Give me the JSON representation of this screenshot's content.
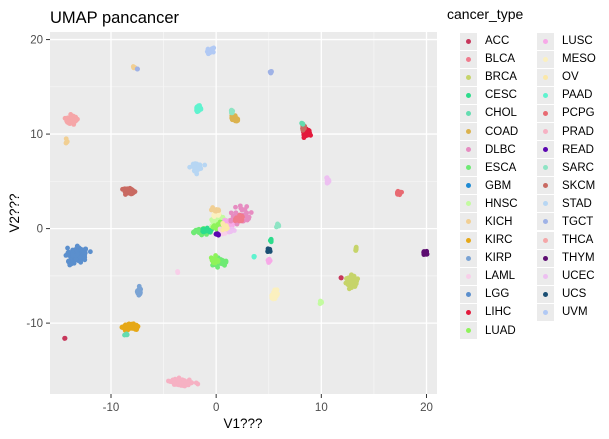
{
  "chart_data": {
    "type": "scatter",
    "title": "UMAP pancancer",
    "xlabel": "V1???",
    "ylabel": "V2???",
    "xlim": [
      -15.8,
      21.0
    ],
    "ylim": [
      -17.5,
      20.8
    ],
    "xticks": [
      -10,
      0,
      10,
      20
    ],
    "yticks": [
      -10,
      0,
      10,
      20
    ],
    "xtick_labels": [
      "-10",
      "0",
      "10",
      "20"
    ],
    "ytick_labels": [
      "-10",
      "0",
      "10",
      "20"
    ],
    "grid": true,
    "legend": {
      "title": "cancer_type",
      "placement": "right",
      "entries": [
        {
          "name": "ACC",
          "color": "#c7375b"
        },
        {
          "name": "BLCA",
          "color": "#f07b8d"
        },
        {
          "name": "BRCA",
          "color": "#c6d46a"
        },
        {
          "name": "CESC",
          "color": "#2ddc8c"
        },
        {
          "name": "CHOL",
          "color": "#64dcb0"
        },
        {
          "name": "COAD",
          "color": "#dbb24e"
        },
        {
          "name": "DLBC",
          "color": "#e68cc1"
        },
        {
          "name": "ESCA",
          "color": "#6eea74"
        },
        {
          "name": "GBM",
          "color": "#1f8bd4"
        },
        {
          "name": "HNSC",
          "color": "#c3fba0"
        },
        {
          "name": "KICH",
          "color": "#f1cf93"
        },
        {
          "name": "KIRC",
          "color": "#e6a817"
        },
        {
          "name": "KIRP",
          "color": "#7aa3d4"
        },
        {
          "name": "LAML",
          "color": "#f8cfe9"
        },
        {
          "name": "LGG",
          "color": "#5b8fcd"
        },
        {
          "name": "LIHC",
          "color": "#e31a3c"
        },
        {
          "name": "LUAD",
          "color": "#8ef35a"
        },
        {
          "name": "LUSC",
          "color": "#f7a9e8"
        },
        {
          "name": "MESO",
          "color": "#fbf0bf"
        },
        {
          "name": "OV",
          "color": "#fbe8a9"
        },
        {
          "name": "PAAD",
          "color": "#5ff3cf"
        },
        {
          "name": "PCPG",
          "color": "#e86a72"
        },
        {
          "name": "PRAD",
          "color": "#f6b1c3"
        },
        {
          "name": "READ",
          "color": "#5b06b0"
        },
        {
          "name": "SARC",
          "color": "#8ee4c4"
        },
        {
          "name": "SKCM",
          "color": "#c96a62"
        },
        {
          "name": "STAD",
          "color": "#b7d6f3"
        },
        {
          "name": "TGCT",
          "color": "#9fb2e6"
        },
        {
          "name": "THCA",
          "color": "#f5a6a8"
        },
        {
          "name": "THYM",
          "color": "#5c0c70"
        },
        {
          "name": "UCEC",
          "color": "#edc0f1"
        },
        {
          "name": "UCS",
          "color": "#1b4f73"
        },
        {
          "name": "UVM",
          "color": "#b1c9f4"
        }
      ]
    },
    "clusters": [
      {
        "series": "LGG",
        "cx": -13.2,
        "cy": -2.7,
        "sx": 0.7,
        "sy": 0.6,
        "n": 190
      },
      {
        "series": "LGG",
        "cx": -13.8,
        "cy": -3.5,
        "sx": 0.3,
        "sy": 0.3,
        "n": 20
      },
      {
        "series": "KIRP",
        "cx": -7.3,
        "cy": -6.7,
        "sx": 0.15,
        "sy": 0.4,
        "n": 25
      },
      {
        "series": "KIRC",
        "cx": -8.2,
        "cy": -10.4,
        "sx": 0.55,
        "sy": 0.3,
        "n": 70
      },
      {
        "series": "CHOL",
        "cx": -8.5,
        "cy": -11.2,
        "sx": 0.15,
        "sy": 0.15,
        "n": 5
      },
      {
        "series": "ACC",
        "cx": -14.4,
        "cy": -11.6,
        "sx": 0.05,
        "sy": 0.05,
        "n": 3
      },
      {
        "series": "THCA",
        "cx": -13.7,
        "cy": 11.5,
        "sx": 0.5,
        "sy": 0.4,
        "n": 60
      },
      {
        "series": "KICH",
        "cx": -14.2,
        "cy": 9.2,
        "sx": 0.1,
        "sy": 0.2,
        "n": 6
      },
      {
        "series": "KICH",
        "cx": -7.8,
        "cy": 17.1,
        "sx": 0.1,
        "sy": 0.1,
        "n": 4
      },
      {
        "series": "TGCT",
        "cx": -7.5,
        "cy": 16.9,
        "sx": 0.05,
        "sy": 0.05,
        "n": 3
      },
      {
        "series": "SKCM",
        "cx": -8.2,
        "cy": 3.9,
        "sx": 0.5,
        "sy": 0.3,
        "n": 55
      },
      {
        "series": "PRAD",
        "cx": -3.2,
        "cy": -16.3,
        "sx": 0.9,
        "sy": 0.3,
        "n": 90
      },
      {
        "series": "LAML",
        "cx": -3.7,
        "cy": -4.6,
        "sx": 0.1,
        "sy": 0.1,
        "n": 3
      },
      {
        "series": "STAD",
        "cx": -1.8,
        "cy": 6.5,
        "sx": 0.45,
        "sy": 0.4,
        "n": 45
      },
      {
        "series": "PAAD",
        "cx": -1.7,
        "cy": 12.7,
        "sx": 0.25,
        "sy": 0.3,
        "n": 25
      },
      {
        "series": "COAD",
        "cx": 1.7,
        "cy": 11.7,
        "sx": 0.3,
        "sy": 0.3,
        "n": 25
      },
      {
        "series": "SARC",
        "cx": 1.5,
        "cy": 12.4,
        "sx": 0.15,
        "sy": 0.15,
        "n": 8
      },
      {
        "series": "UVM",
        "cx": -0.5,
        "cy": 18.7,
        "sx": 0.35,
        "sy": 0.3,
        "n": 12
      },
      {
        "series": "TGCT",
        "cx": 5.2,
        "cy": 16.5,
        "sx": 0.15,
        "sy": 0.15,
        "n": 8
      },
      {
        "series": "LIHC",
        "cx": 8.6,
        "cy": 10.1,
        "sx": 0.3,
        "sy": 0.35,
        "n": 50
      },
      {
        "series": "SKCM",
        "cx": 8.3,
        "cy": 10.7,
        "sx": 0.1,
        "sy": 0.3,
        "n": 8
      },
      {
        "series": "CHOL",
        "cx": 8.2,
        "cy": 11.1,
        "sx": 0.1,
        "sy": 0.1,
        "n": 4
      },
      {
        "series": "PCPG",
        "cx": 17.4,
        "cy": 3.8,
        "sx": 0.15,
        "sy": 0.3,
        "n": 20
      },
      {
        "series": "UCEC",
        "cx": 10.6,
        "cy": 5.1,
        "sx": 0.15,
        "sy": 0.3,
        "n": 10
      },
      {
        "series": "THYM",
        "cx": 19.9,
        "cy": -2.6,
        "sx": 0.25,
        "sy": 0.2,
        "n": 15
      },
      {
        "series": "BRCA",
        "cx": 12.9,
        "cy": -5.6,
        "sx": 0.45,
        "sy": 0.5,
        "n": 110
      },
      {
        "series": "BRCA",
        "cx": 13.3,
        "cy": -2.2,
        "sx": 0.1,
        "sy": 0.15,
        "n": 8
      },
      {
        "series": "ACC",
        "cx": 11.9,
        "cy": -5.2,
        "sx": 0.05,
        "sy": 0.05,
        "n": 3
      },
      {
        "series": "MESO",
        "cx": 5.6,
        "cy": -6.9,
        "sx": 0.3,
        "sy": 0.5,
        "n": 30
      },
      {
        "series": "HNSC",
        "cx": 10.0,
        "cy": -7.8,
        "sx": 0.1,
        "sy": 0.2,
        "n": 8
      },
      {
        "series": "UCS",
        "cx": 5.0,
        "cy": -2.4,
        "sx": 0.1,
        "sy": 0.2,
        "n": 8
      },
      {
        "series": "LUSC",
        "cx": 5.0,
        "cy": -3.4,
        "sx": 0.15,
        "sy": 0.3,
        "n": 8
      },
      {
        "series": "CESC",
        "cx": 5.2,
        "cy": -1.3,
        "sx": 0.1,
        "sy": 0.2,
        "n": 5
      },
      {
        "series": "SARC",
        "cx": 5.8,
        "cy": 0.3,
        "sx": 0.2,
        "sy": 0.2,
        "n": 8
      },
      {
        "series": "ESCA",
        "cx": -1.5,
        "cy": -0.3,
        "sx": 0.6,
        "sy": 0.25,
        "n": 50
      },
      {
        "series": "CESC",
        "cx": -1.0,
        "cy": -0.2,
        "sx": 0.4,
        "sy": 0.2,
        "n": 25
      },
      {
        "series": "HNSC",
        "cx": 0.3,
        "cy": 0.9,
        "sx": 0.6,
        "sy": 0.5,
        "n": 55
      },
      {
        "series": "LUAD",
        "cx": 0.3,
        "cy": 0.2,
        "sx": 0.5,
        "sy": 0.4,
        "n": 40
      },
      {
        "series": "MESO",
        "cx": 0.0,
        "cy": 1.5,
        "sx": 0.4,
        "sy": 0.3,
        "n": 20
      },
      {
        "series": "KICH",
        "cx": -0.1,
        "cy": 2.0,
        "sx": 0.3,
        "sy": 0.2,
        "n": 12
      },
      {
        "series": "LUSC",
        "cx": 1.3,
        "cy": 0.6,
        "sx": 0.4,
        "sy": 0.3,
        "n": 25
      },
      {
        "series": "DLBC",
        "cx": 2.4,
        "cy": 1.4,
        "sx": 0.9,
        "sy": 0.7,
        "n": 45
      },
      {
        "series": "BLCA",
        "cx": 2.1,
        "cy": 1.0,
        "sx": 0.5,
        "sy": 0.4,
        "n": 20
      },
      {
        "series": "LAML",
        "cx": 0.8,
        "cy": -0.3,
        "sx": 0.4,
        "sy": 0.3,
        "n": 20
      },
      {
        "series": "UCEC",
        "cx": 1.3,
        "cy": -0.2,
        "sx": 0.3,
        "sy": 0.2,
        "n": 15
      },
      {
        "series": "READ",
        "cx": 0.1,
        "cy": -0.6,
        "sx": 0.15,
        "sy": 0.1,
        "n": 8
      },
      {
        "series": "OV",
        "cx": 0.9,
        "cy": 0.2,
        "sx": 0.3,
        "sy": 0.3,
        "n": 15
      },
      {
        "series": "ESCA",
        "cx": 0.3,
        "cy": -3.6,
        "sx": 0.6,
        "sy": 0.3,
        "n": 40
      },
      {
        "series": "LUAD",
        "cx": -0.2,
        "cy": -3.4,
        "sx": 0.4,
        "sy": 0.3,
        "n": 20
      },
      {
        "series": "PAAD",
        "cx": 3.6,
        "cy": -3.0,
        "sx": 0.1,
        "sy": 0.1,
        "n": 4
      }
    ]
  }
}
